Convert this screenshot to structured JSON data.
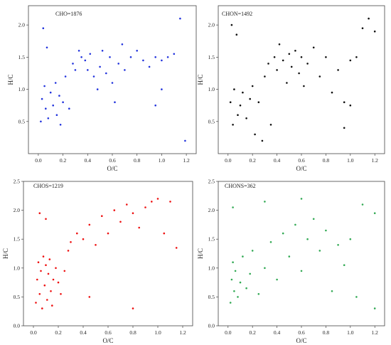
{
  "figure_title": "",
  "chart_data": [
    {
      "type": "scatter",
      "title": "CHO=1876",
      "xlabel": "O/C",
      "ylabel": "H/C",
      "xlim": [
        -0.08,
        1.28
      ],
      "ylim": [
        0,
        2.3
      ],
      "xticks": [
        "0.0",
        "0.2",
        "0.4",
        "0.6",
        "0.8",
        "1.0",
        "1.2"
      ],
      "yticks": [
        "0.5",
        "1.0",
        "1.5",
        "2.0"
      ],
      "color": "#2233dd",
      "count": 1876,
      "points": [
        [
          0.02,
          0.5
        ],
        [
          0.03,
          0.85
        ],
        [
          0.05,
          1.05
        ],
        [
          0.06,
          0.7
        ],
        [
          0.08,
          0.55
        ],
        [
          0.1,
          0.95
        ],
        [
          0.12,
          0.75
        ],
        [
          0.14,
          1.1
        ],
        [
          0.15,
          0.6
        ],
        [
          0.17,
          0.9
        ],
        [
          0.18,
          0.45
        ],
        [
          0.2,
          0.8
        ],
        [
          0.22,
          1.2
        ],
        [
          0.25,
          0.7
        ],
        [
          0.28,
          1.4
        ],
        [
          0.3,
          1.3
        ],
        [
          0.33,
          1.6
        ],
        [
          0.35,
          1.5
        ],
        [
          0.38,
          1.45
        ],
        [
          0.4,
          1.3
        ],
        [
          0.42,
          1.55
        ],
        [
          0.45,
          1.2
        ],
        [
          0.48,
          1.0
        ],
        [
          0.5,
          1.35
        ],
        [
          0.52,
          1.6
        ],
        [
          0.55,
          1.25
        ],
        [
          0.58,
          1.5
        ],
        [
          0.6,
          1.1
        ],
        [
          0.62,
          0.8
        ],
        [
          0.65,
          1.4
        ],
        [
          0.68,
          1.7
        ],
        [
          0.7,
          1.3
        ],
        [
          0.75,
          1.5
        ],
        [
          0.8,
          1.6
        ],
        [
          0.85,
          1.45
        ],
        [
          0.9,
          1.35
        ],
        [
          0.95,
          1.5
        ],
        [
          1.0,
          1.45
        ],
        [
          1.0,
          1.0
        ],
        [
          1.05,
          1.5
        ],
        [
          1.1,
          1.55
        ],
        [
          1.15,
          2.1
        ],
        [
          1.19,
          0.2
        ],
        [
          0.04,
          1.95
        ],
        [
          0.07,
          1.65
        ],
        [
          0.95,
          0.75
        ]
      ]
    },
    {
      "type": "scatter",
      "title": "CHON=1492",
      "xlabel": "O/C",
      "ylabel": "H/C",
      "xlim": [
        -0.08,
        1.28
      ],
      "ylim": [
        0,
        2.3
      ],
      "xticks": [
        "0.0",
        "0.2",
        "0.4",
        "0.6",
        "0.8",
        "1.0",
        "1.2"
      ],
      "yticks": [
        "0.5",
        "1.0",
        "1.5",
        "2.0"
      ],
      "color": "#111111",
      "count": 1492,
      "points": [
        [
          0.02,
          0.8
        ],
        [
          0.04,
          0.45
        ],
        [
          0.05,
          1.0
        ],
        [
          0.08,
          0.6
        ],
        [
          0.1,
          0.75
        ],
        [
          0.12,
          0.95
        ],
        [
          0.15,
          0.55
        ],
        [
          0.18,
          0.85
        ],
        [
          0.2,
          1.05
        ],
        [
          0.22,
          0.3
        ],
        [
          0.25,
          0.8
        ],
        [
          0.28,
          0.2
        ],
        [
          0.3,
          1.2
        ],
        [
          0.33,
          1.4
        ],
        [
          0.35,
          0.45
        ],
        [
          0.38,
          1.5
        ],
        [
          0.4,
          1.3
        ],
        [
          0.42,
          1.7
        ],
        [
          0.45,
          1.45
        ],
        [
          0.48,
          1.1
        ],
        [
          0.5,
          1.55
        ],
        [
          0.52,
          1.35
        ],
        [
          0.55,
          1.6
        ],
        [
          0.58,
          1.25
        ],
        [
          0.6,
          1.5
        ],
        [
          0.62,
          1.05
        ],
        [
          0.65,
          1.4
        ],
        [
          0.7,
          1.65
        ],
        [
          0.75,
          1.2
        ],
        [
          0.8,
          1.5
        ],
        [
          0.85,
          0.95
        ],
        [
          0.9,
          1.3
        ],
        [
          0.95,
          0.8
        ],
        [
          1.0,
          1.45
        ],
        [
          1.0,
          0.75
        ],
        [
          1.05,
          1.5
        ],
        [
          1.1,
          1.95
        ],
        [
          1.15,
          2.1
        ],
        [
          1.2,
          1.9
        ],
        [
          0.03,
          2.0
        ],
        [
          0.07,
          1.85
        ],
        [
          0.95,
          0.4
        ]
      ]
    },
    {
      "type": "scatter",
      "title": "CHOS=1219",
      "xlabel": "O/C",
      "ylabel": "H/C",
      "xlim": [
        -0.08,
        1.28
      ],
      "ylim": [
        0,
        2.5
      ],
      "xticks": [
        "0.0",
        "0.2",
        "0.4",
        "0.6",
        "0.8",
        "1.0",
        "1.2"
      ],
      "yticks": [
        "0.0",
        "0.5",
        "1.0",
        "1.5",
        "2.0",
        "2.5"
      ],
      "color": "#ee1111",
      "count": 1219,
      "points": [
        [
          0.02,
          0.4
        ],
        [
          0.03,
          0.8
        ],
        [
          0.04,
          1.1
        ],
        [
          0.05,
          0.55
        ],
        [
          0.06,
          0.95
        ],
        [
          0.07,
          0.3
        ],
        [
          0.08,
          1.2
        ],
        [
          0.09,
          0.7
        ],
        [
          0.1,
          1.05
        ],
        [
          0.11,
          0.45
        ],
        [
          0.12,
          0.9
        ],
        [
          0.13,
          1.15
        ],
        [
          0.14,
          0.6
        ],
        [
          0.15,
          0.35
        ],
        [
          0.16,
          0.8
        ],
        [
          0.18,
          1.0
        ],
        [
          0.2,
          0.75
        ],
        [
          0.22,
          0.55
        ],
        [
          0.25,
          0.95
        ],
        [
          0.28,
          1.3
        ],
        [
          0.3,
          1.45
        ],
        [
          0.35,
          1.6
        ],
        [
          0.4,
          1.5
        ],
        [
          0.45,
          1.75
        ],
        [
          0.5,
          1.4
        ],
        [
          0.55,
          1.9
        ],
        [
          0.6,
          1.6
        ],
        [
          0.65,
          2.0
        ],
        [
          0.7,
          1.8
        ],
        [
          0.75,
          2.1
        ],
        [
          0.8,
          1.95
        ],
        [
          0.85,
          1.7
        ],
        [
          0.9,
          2.05
        ],
        [
          0.95,
          2.15
        ],
        [
          1.0,
          2.2
        ],
        [
          1.05,
          1.6
        ],
        [
          1.1,
          2.15
        ],
        [
          1.15,
          1.35
        ],
        [
          0.05,
          1.95
        ],
        [
          0.1,
          1.85
        ],
        [
          0.45,
          0.5
        ],
        [
          0.8,
          0.3
        ]
      ]
    },
    {
      "type": "scatter",
      "title": "CHONS=362",
      "xlabel": "O/C",
      "ylabel": "H/C",
      "xlim": [
        -0.08,
        1.28
      ],
      "ylim": [
        0,
        2.5
      ],
      "xticks": [
        "0.0",
        "0.2",
        "0.4",
        "0.6",
        "0.8",
        "1.0",
        "1.2"
      ],
      "yticks": [
        "0.0",
        "0.5",
        "1.0",
        "1.5",
        "2.0",
        "2.5"
      ],
      "color": "#33aa55",
      "count": 362,
      "points": [
        [
          0.02,
          0.4
        ],
        [
          0.03,
          0.8
        ],
        [
          0.04,
          1.1
        ],
        [
          0.05,
          0.6
        ],
        [
          0.06,
          0.95
        ],
        [
          0.08,
          0.5
        ],
        [
          0.1,
          0.75
        ],
        [
          0.12,
          1.2
        ],
        [
          0.15,
          0.65
        ],
        [
          0.18,
          0.9
        ],
        [
          0.2,
          1.3
        ],
        [
          0.25,
          0.55
        ],
        [
          0.3,
          1.0
        ],
        [
          0.35,
          1.45
        ],
        [
          0.4,
          0.8
        ],
        [
          0.45,
          1.6
        ],
        [
          0.5,
          1.2
        ],
        [
          0.55,
          1.75
        ],
        [
          0.6,
          0.95
        ],
        [
          0.65,
          1.5
        ],
        [
          0.7,
          1.85
        ],
        [
          0.75,
          1.3
        ],
        [
          0.8,
          1.65
        ],
        [
          0.85,
          0.6
        ],
        [
          0.9,
          1.4
        ],
        [
          0.95,
          1.05
        ],
        [
          1.0,
          1.5
        ],
        [
          1.05,
          0.5
        ],
        [
          1.1,
          2.1
        ],
        [
          1.2,
          1.95
        ],
        [
          1.2,
          0.3
        ],
        [
          0.04,
          2.05
        ],
        [
          0.3,
          2.15
        ],
        [
          0.6,
          2.2
        ]
      ]
    }
  ]
}
